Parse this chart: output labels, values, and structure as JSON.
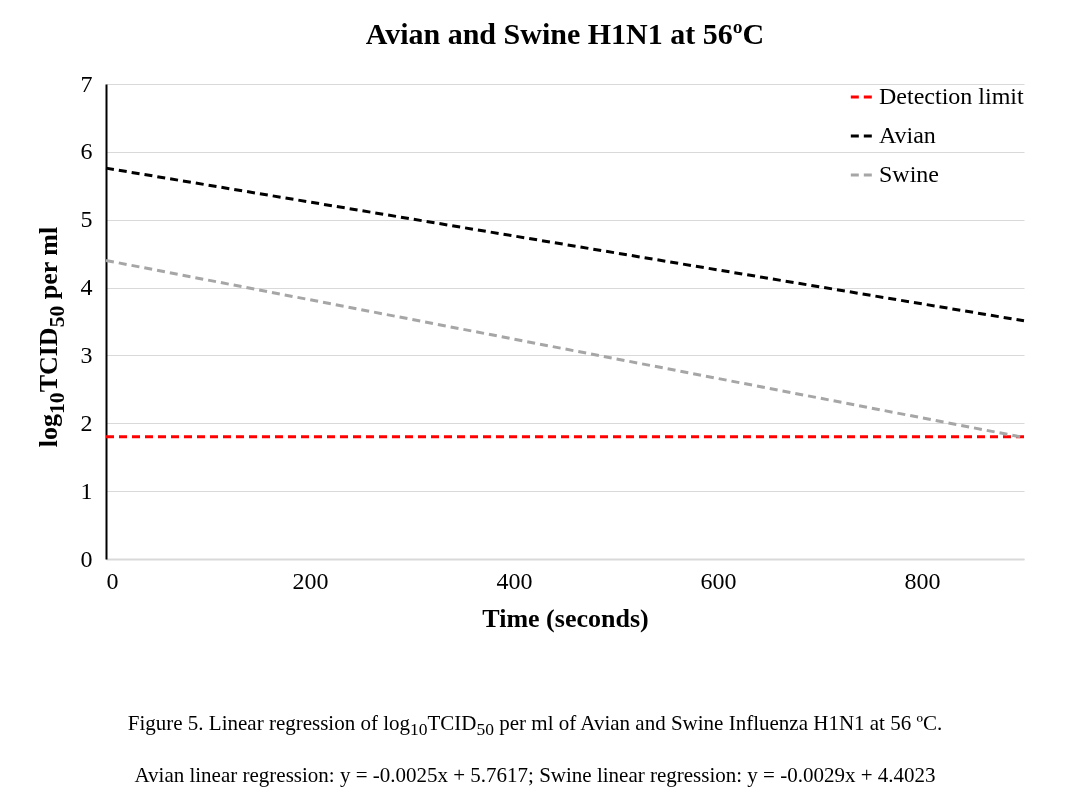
{
  "chart_data": {
    "type": "line",
    "title": "Avian and Swine H1N1 at 56ºC",
    "xlabel": "Time (seconds)",
    "ylabel": "log$_{10}$TCID$_{50}$ per ml",
    "xlim": [
      0,
      900
    ],
    "xticks": [
      0,
      200,
      400,
      600,
      800
    ],
    "ylim": [
      0,
      7
    ],
    "yticks": [
      0,
      1,
      2,
      3,
      4,
      5,
      6,
      7
    ],
    "grid": "y",
    "legend": "top right",
    "marker": "none",
    "x": [
      0,
      900
    ],
    "series": [
      {
        "name": "Detection limit",
        "color": "#ff0000",
        "line_style": "dashed",
        "values": [
          1.8,
          1.8
        ]
      },
      {
        "name": "Avian",
        "color": "#000000",
        "line_style": "dashed",
        "values": [
          5.76,
          3.51
        ]
      },
      {
        "name": "Swine",
        "color": "#a6a6a6",
        "line_style": "dashed",
        "values": [
          4.4,
          1.79
        ]
      }
    ],
    "annotations": [
      "Figure 5. Linear regression of log$_{10}$TCID$_{50}$ per ml of Avian and Swine Influenza H1N1 at 56 ºC.",
      "Avian linear regression: y = -0.0025x + 5.7617; Swine linear regression: y = -0.0029x + 4.4023"
    ]
  }
}
